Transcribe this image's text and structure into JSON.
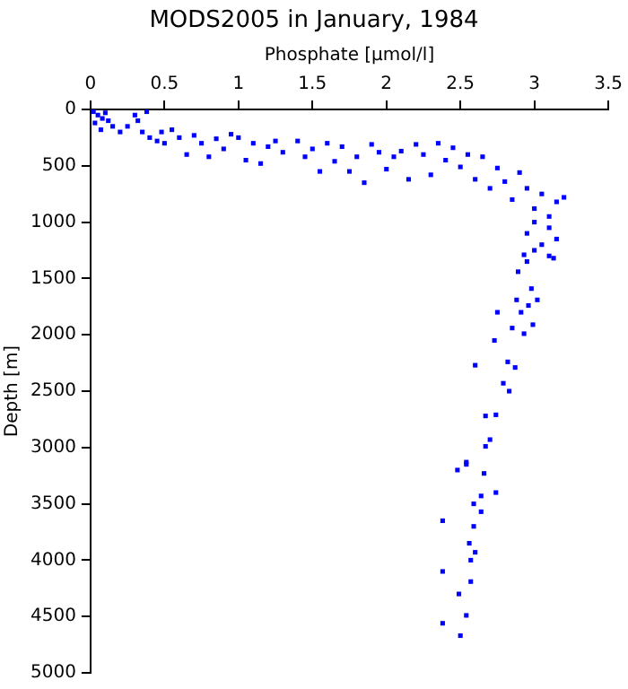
{
  "chart_data": {
    "type": "scatter",
    "title": "MODS2005 in January, 1984",
    "xlabel": "Phosphate [µmol/l]",
    "ylabel": "Depth [m]",
    "xlim": [
      0,
      3.5
    ],
    "xticks": [
      0,
      0.5,
      1,
      1.5,
      2,
      2.5,
      3,
      3.5
    ],
    "ylim": [
      5000,
      0
    ],
    "yticks": [
      0,
      500,
      1000,
      1500,
      2000,
      2500,
      3000,
      3500,
      4000,
      4500,
      5000
    ],
    "grid": false,
    "legend": false,
    "marker": "square",
    "series": [
      {
        "color": "#0000ff",
        "x": [
          0.02,
          0.05,
          0.08,
          0.1,
          0.12,
          0.03,
          0.15,
          0.07,
          0.2,
          0.25,
          0.3,
          0.32,
          0.35,
          0.38,
          0.4,
          0.45,
          0.5,
          0.48,
          0.55,
          0.6,
          0.65,
          0.7,
          0.75,
          0.8,
          0.85,
          0.9,
          0.95,
          1.0,
          1.05,
          1.1,
          1.15,
          1.2,
          1.25,
          1.3,
          1.4,
          1.45,
          1.5,
          1.55,
          1.6,
          1.65,
          1.7,
          1.75,
          1.8,
          1.85,
          1.9,
          1.95,
          2.0,
          2.05,
          2.1,
          2.15,
          2.2,
          2.25,
          2.3,
          2.35,
          2.4,
          2.45,
          2.5,
          2.55,
          2.6,
          2.65,
          2.7,
          2.75,
          2.8,
          2.85,
          2.9,
          2.95,
          3.0,
          3.05,
          3.1,
          3.15,
          3.2,
          3.1,
          3.0,
          2.95,
          3.05,
          3.1,
          3.15,
          3.0,
          2.95,
          3.13,
          2.93,
          2.89,
          2.98,
          2.88,
          3.02,
          2.96,
          2.75,
          2.91,
          2.85,
          2.99,
          2.93,
          2.73,
          2.6,
          2.82,
          2.87,
          2.79,
          2.83,
          2.67,
          2.74,
          2.7,
          2.67,
          2.54,
          2.48,
          2.54,
          2.66,
          2.74,
          2.64,
          2.59,
          2.64,
          2.38,
          2.59,
          2.56,
          2.6,
          2.57,
          2.38,
          2.57,
          2.49,
          2.54,
          2.38,
          2.5
        ],
        "values": [
          20,
          50,
          80,
          30,
          100,
          120,
          150,
          180,
          200,
          150,
          50,
          100,
          200,
          20,
          250,
          280,
          300,
          200,
          180,
          250,
          400,
          230,
          300,
          420,
          260,
          350,
          220,
          250,
          450,
          300,
          480,
          330,
          280,
          380,
          280,
          420,
          350,
          550,
          300,
          460,
          330,
          550,
          420,
          650,
          310,
          380,
          530,
          420,
          370,
          620,
          310,
          400,
          580,
          300,
          450,
          340,
          510,
          400,
          620,
          420,
          700,
          520,
          640,
          800,
          560,
          700,
          880,
          750,
          950,
          820,
          780,
          1050,
          1000,
          1100,
          1200,
          1300,
          1150,
          1250,
          1350,
          1320,
          1290,
          1440,
          1590,
          1690,
          1690,
          1740,
          1800,
          1800,
          1940,
          1910,
          1990,
          2050,
          2270,
          2240,
          2290,
          2430,
          2500,
          2720,
          2710,
          2930,
          2990,
          3130,
          3200,
          3150,
          3230,
          3400,
          3430,
          3500,
          3570,
          3650,
          3700,
          3850,
          3930,
          4000,
          4100,
          4190,
          4300,
          4490,
          4560,
          4670
        ]
      }
    ]
  }
}
